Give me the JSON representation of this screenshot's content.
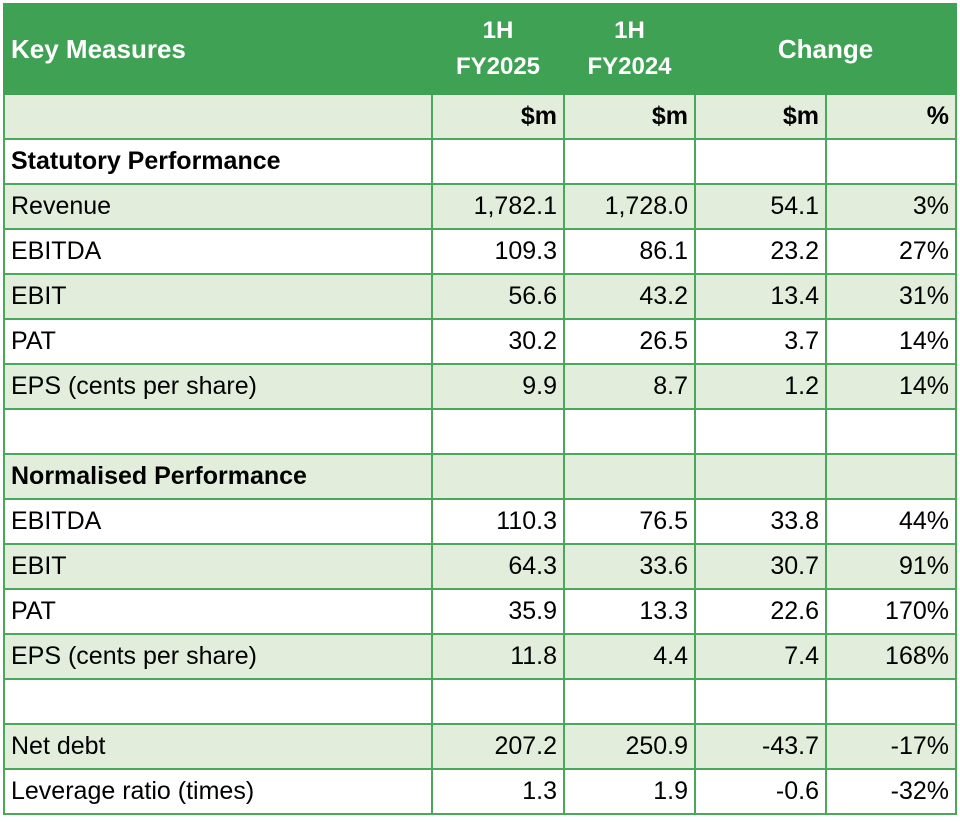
{
  "header": {
    "label": "Key Measures",
    "col1_line1": "1H",
    "col1_line2": "FY2025",
    "col2_line1": "1H",
    "col2_line2": "FY2024",
    "change": "Change"
  },
  "units": [
    "$m",
    "$m",
    "$m",
    "%"
  ],
  "sections": {
    "statutory": "Statutory Performance",
    "normalised": "Normalised Performance"
  },
  "statutory_rows": [
    {
      "name": "Revenue",
      "fy2025": "1,782.1",
      "fy2024": "1,728.0",
      "change": "54.1",
      "pct": "3%"
    },
    {
      "name": "EBITDA",
      "fy2025": "109.3",
      "fy2024": "86.1",
      "change": "23.2",
      "pct": "27%"
    },
    {
      "name": "EBIT",
      "fy2025": "56.6",
      "fy2024": "43.2",
      "change": "13.4",
      "pct": "31%"
    },
    {
      "name": "PAT",
      "fy2025": "30.2",
      "fy2024": "26.5",
      "change": "3.7",
      "pct": "14%"
    },
    {
      "name": "EPS (cents per share)",
      "fy2025": "9.9",
      "fy2024": "8.7",
      "change": "1.2",
      "pct": "14%"
    }
  ],
  "normalised_rows": [
    {
      "name": "EBITDA",
      "fy2025": "110.3",
      "fy2024": "76.5",
      "change": "33.8",
      "pct": "44%"
    },
    {
      "name": "EBIT",
      "fy2025": "64.3",
      "fy2024": "33.6",
      "change": "30.7",
      "pct": "91%"
    },
    {
      "name": "PAT",
      "fy2025": "35.9",
      "fy2024": "13.3",
      "change": "22.6",
      "pct": "170%"
    },
    {
      "name": "EPS (cents per share)",
      "fy2025": "11.8",
      "fy2024": "4.4",
      "change": "7.4",
      "pct": "168%"
    }
  ],
  "debt_rows": [
    {
      "name": "Net debt",
      "fy2025": "207.2",
      "fy2024": "250.9",
      "change": "-43.7",
      "pct": "-17%"
    },
    {
      "name": "Leverage ratio (times)",
      "fy2025": "1.3",
      "fy2024": "1.9",
      "change": "-0.6",
      "pct": "-32%"
    }
  ],
  "colors": {
    "header_green": "#3fa153",
    "border_green": "#4aa85a",
    "row_shade": "#e2eedb"
  }
}
